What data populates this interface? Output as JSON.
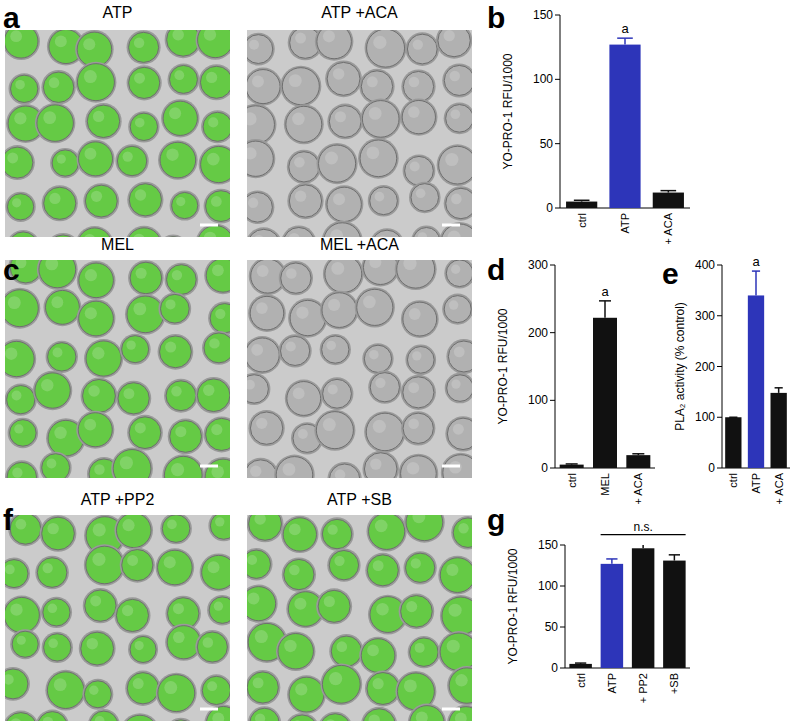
{
  "panel_letters": [
    "a",
    "b",
    "c",
    "d",
    "e",
    "f",
    "g"
  ],
  "images": [
    {
      "title": "ATP",
      "color": "#5fcf3c"
    },
    {
      "title": "ATP +ACA",
      "color": "#b4b4b4"
    },
    {
      "title": "MEL",
      "color": "#5fcf3c"
    },
    {
      "title": "MEL +ACA",
      "color": "#b4b4b4"
    },
    {
      "title": "ATP +PP2",
      "color": "#5fcf3c"
    },
    {
      "title": "ATP +SB",
      "color": "#5fcf3c"
    }
  ],
  "chart_data": [
    {
      "type": "bar",
      "y_label": "YO-PRO-1 RFU/1000",
      "categories": [
        "ctrl",
        "ATP",
        "+ ACA"
      ],
      "values": [
        5,
        127,
        12
      ],
      "errors": [
        1,
        5,
        1.5
      ],
      "colors": [
        "#111111",
        "#2d35b9",
        "#111111"
      ],
      "ylim": [
        0,
        150
      ],
      "yticks": [
        0,
        50,
        100,
        150
      ],
      "annotations": [
        {
          "text": "a",
          "category": "ATP"
        }
      ]
    },
    {
      "type": "bar",
      "y_label": "YO-PRO-1 RFU/1000",
      "categories": [
        "ctrl",
        "MEL",
        "+ ACA"
      ],
      "values": [
        5,
        222,
        19
      ],
      "errors": [
        1,
        25,
        2
      ],
      "colors": [
        "#111111",
        "#111111",
        "#111111"
      ],
      "ylim": [
        0,
        300
      ],
      "yticks": [
        0,
        100,
        200,
        300
      ],
      "annotations": [
        {
          "text": "a",
          "category": "MEL"
        }
      ]
    },
    {
      "type": "bar",
      "y_label": "PLA₂ activity (% control)",
      "categories": [
        "ctrl",
        "ATP",
        "+ ACA"
      ],
      "values": [
        100,
        340,
        148
      ],
      "errors": [
        0,
        48,
        10
      ],
      "colors": [
        "#111111",
        "#2d35b9",
        "#111111"
      ],
      "ylim": [
        0,
        400
      ],
      "yticks": [
        0,
        100,
        200,
        300,
        400
      ],
      "annotations": [
        {
          "text": "a",
          "category": "ATP"
        }
      ]
    },
    {
      "type": "bar",
      "y_label": "YO-PRO-1 RFU/1000",
      "categories": [
        "ctrl",
        "ATP",
        "+ PP2",
        "+SB"
      ],
      "values": [
        5,
        127,
        146,
        131
      ],
      "errors": [
        1,
        6,
        7,
        7
      ],
      "colors": [
        "#111111",
        "#2d35b9",
        "#111111",
        "#111111"
      ],
      "ylim": [
        0,
        150
      ],
      "yticks": [
        0,
        50,
        100,
        150
      ],
      "annotations": [
        {
          "text": "n.s.",
          "categories": [
            "ATP",
            "+ PP2",
            "+SB"
          ]
        }
      ]
    }
  ]
}
